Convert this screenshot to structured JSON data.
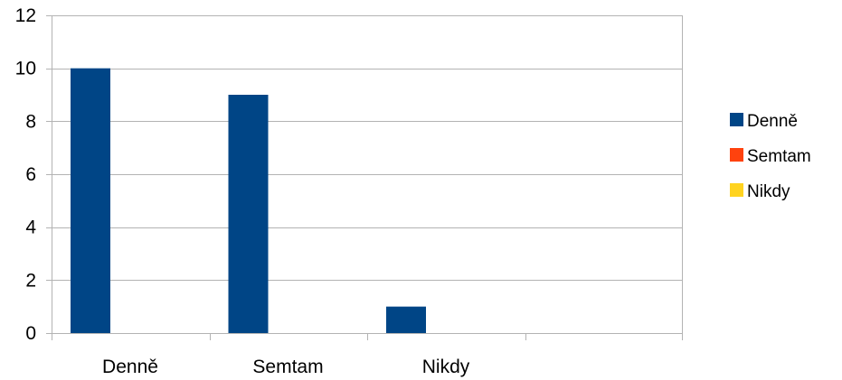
{
  "chart_data": {
    "type": "bar",
    "title": "",
    "xlabel": "",
    "ylabel": "",
    "categories": [
      "Denně",
      "Semtam",
      "Nikdy",
      ""
    ],
    "series": [
      {
        "name": "Denně",
        "color": "#004586",
        "values": [
          10,
          9,
          1,
          null
        ]
      },
      {
        "name": "Semtam",
        "color": "#ff420e",
        "values": [
          0,
          0,
          0,
          null
        ]
      },
      {
        "name": "Nikdy",
        "color": "#ffd320",
        "values": [
          0,
          0,
          0,
          null
        ]
      }
    ],
    "ylim": [
      0,
      12
    ],
    "yticks": [
      0,
      2,
      4,
      6,
      8,
      10,
      12
    ],
    "grid": true,
    "legend": "right",
    "colors": {
      "grid": "#b3b3b3",
      "axis": "#b3b3b3"
    }
  }
}
